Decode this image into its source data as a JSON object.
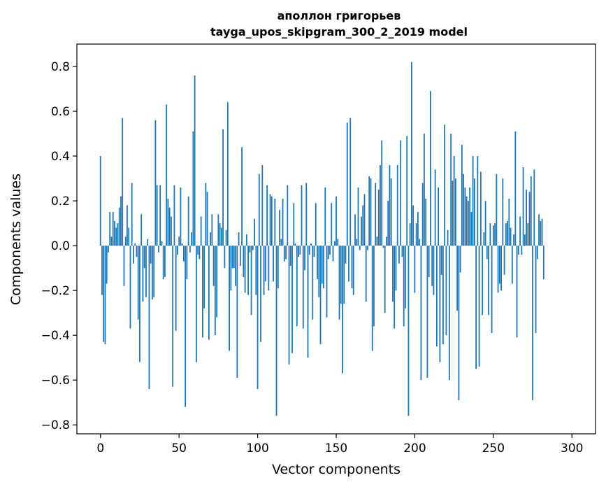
{
  "chart_data": {
    "type": "bar",
    "title_line1": "аполлон григорьев",
    "title_line2": "tayga_upos_skipgram_300_2_2019 model",
    "xlabel": "Vector components",
    "ylabel": "Components values",
    "xlim": [
      -15,
      315
    ],
    "ylim": [
      -0.84,
      0.9
    ],
    "xticks": [
      0,
      50,
      100,
      150,
      200,
      250,
      300
    ],
    "xtick_labels": [
      "0",
      "50",
      "100",
      "150",
      "200",
      "250",
      "300"
    ],
    "yticks": [
      -0.8,
      -0.6,
      -0.4,
      -0.2,
      0.0,
      0.2,
      0.4,
      0.6,
      0.8
    ],
    "ytick_labels": [
      "−0.8",
      "−0.6",
      "−0.4",
      "−0.2",
      "0.0",
      "0.2",
      "0.4",
      "0.6",
      "0.8"
    ],
    "bar_color": "#1f77b4",
    "grid": false,
    "values": [
      0.4,
      -0.22,
      -0.43,
      -0.44,
      -0.17,
      -0.03,
      0.15,
      0.04,
      0.15,
      0.11,
      0.08,
      0.1,
      0.17,
      0.22,
      0.57,
      -0.18,
      0.04,
      0.18,
      0.08,
      -0.37,
      0.28,
      -0.08,
      0.01,
      -0.05,
      -0.33,
      -0.52,
      0.14,
      -0.25,
      -0.1,
      -0.23,
      0.03,
      -0.64,
      -0.08,
      -0.24,
      -0.23,
      0.56,
      0.27,
      -0.03,
      0.27,
      0.02,
      -0.15,
      -0.14,
      0.63,
      0.21,
      0.17,
      0.13,
      -0.63,
      0.27,
      -0.38,
      -0.04,
      0.04,
      0.26,
      0.01,
      -0.07,
      -0.72,
      -0.15,
      0.22,
      -0.03,
      0.06,
      0.51,
      0.76,
      -0.52,
      -0.04,
      -0.06,
      0.13,
      -0.41,
      -0.28,
      0.28,
      0.24,
      -0.42,
      0.06,
      0.14,
      -0.18,
      -0.4,
      -0.32,
      0.14,
      0.1,
      0.08,
      0.52,
      -0.1,
      0.07,
      0.64,
      -0.47,
      -0.2,
      -0.1,
      -0.1,
      -0.18,
      -0.59,
      0.06,
      -0.09,
      0.44,
      -0.14,
      -0.21,
      0.05,
      -0.22,
      -0.03,
      -0.31,
      -0.02,
      0.12,
      -0.22,
      -0.64,
      0.32,
      -0.43,
      0.36,
      -0.22,
      -0.16,
      0.27,
      -0.2,
      0.23,
      0.22,
      -0.16,
      0.21,
      -0.76,
      -0.19,
      0.16,
      0.03,
      0.21,
      -0.07,
      -0.06,
      0.27,
      -0.53,
      -0.09,
      -0.48,
      0.19,
      0.01,
      -0.36,
      -0.05,
      -0.04,
      0.27,
      -0.37,
      -0.11,
      0.28,
      -0.5,
      -0.04,
      0.01,
      -0.33,
      -0.05,
      0.19,
      -0.15,
      -0.23,
      -0.44,
      -0.17,
      -0.19,
      0.26,
      -0.32,
      -0.06,
      -0.04,
      0.19,
      -0.07,
      0.02,
      0.22,
      0.03,
      -0.33,
      -0.26,
      -0.57,
      -0.26,
      -0.08,
      0.55,
      -0.16,
      0.57,
      -0.19,
      -0.22,
      0.14,
      0.03,
      0.26,
      -0.02,
      0.13,
      0.18,
      0.23,
      -0.25,
      -0.02,
      0.31,
      0.3,
      -0.47,
      -0.36,
      0.28,
      0.04,
      0.25,
      0.36,
      0.47,
      -0.01,
      -0.3,
      0.04,
      0.2,
      0.36,
      0.3,
      -0.25,
      -0.37,
      -0.2,
      0.36,
      -0.08,
      0.47,
      -0.05,
      -0.36,
      -0.28,
      0.49,
      -0.76,
      0.1,
      0.82,
      0.18,
      -0.21,
      0.1,
      0.15,
      0.03,
      -0.6,
      0.28,
      0.5,
      0.21,
      -0.59,
      -0.14,
      0.69,
      -0.18,
      -0.22,
      0.34,
      -0.45,
      0.26,
      -0.52,
      -0.13,
      -0.44,
      0.54,
      -0.4,
      0.07,
      -0.6,
      0.5,
      0.29,
      0.4,
      0.3,
      -0.29,
      -0.69,
      -0.12,
      0.45,
      0.32,
      0.26,
      0.22,
      0.2,
      0.26,
      0.15,
      0.4,
      0.3,
      -0.55,
      0.4,
      -0.54,
      0.33,
      -0.31,
      0.06,
      0.2,
      -0.06,
      -0.31,
      0.1,
      -0.39,
      0.09,
      0.1,
      0.32,
      -0.21,
      -0.17,
      -0.2,
      0.3,
      -0.13,
      0.1,
      0.11,
      0.21,
      0.08,
      -0.17,
      0.05,
      0.51,
      -0.41,
      -0.04,
      0.13,
      -0.04,
      0.35,
      0.05,
      0.25,
      0.1,
      0.24,
      0.31,
      -0.69,
      0.34,
      -0.39,
      -0.06,
      0.14,
      0.11,
      0.12,
      -0.15
    ]
  }
}
